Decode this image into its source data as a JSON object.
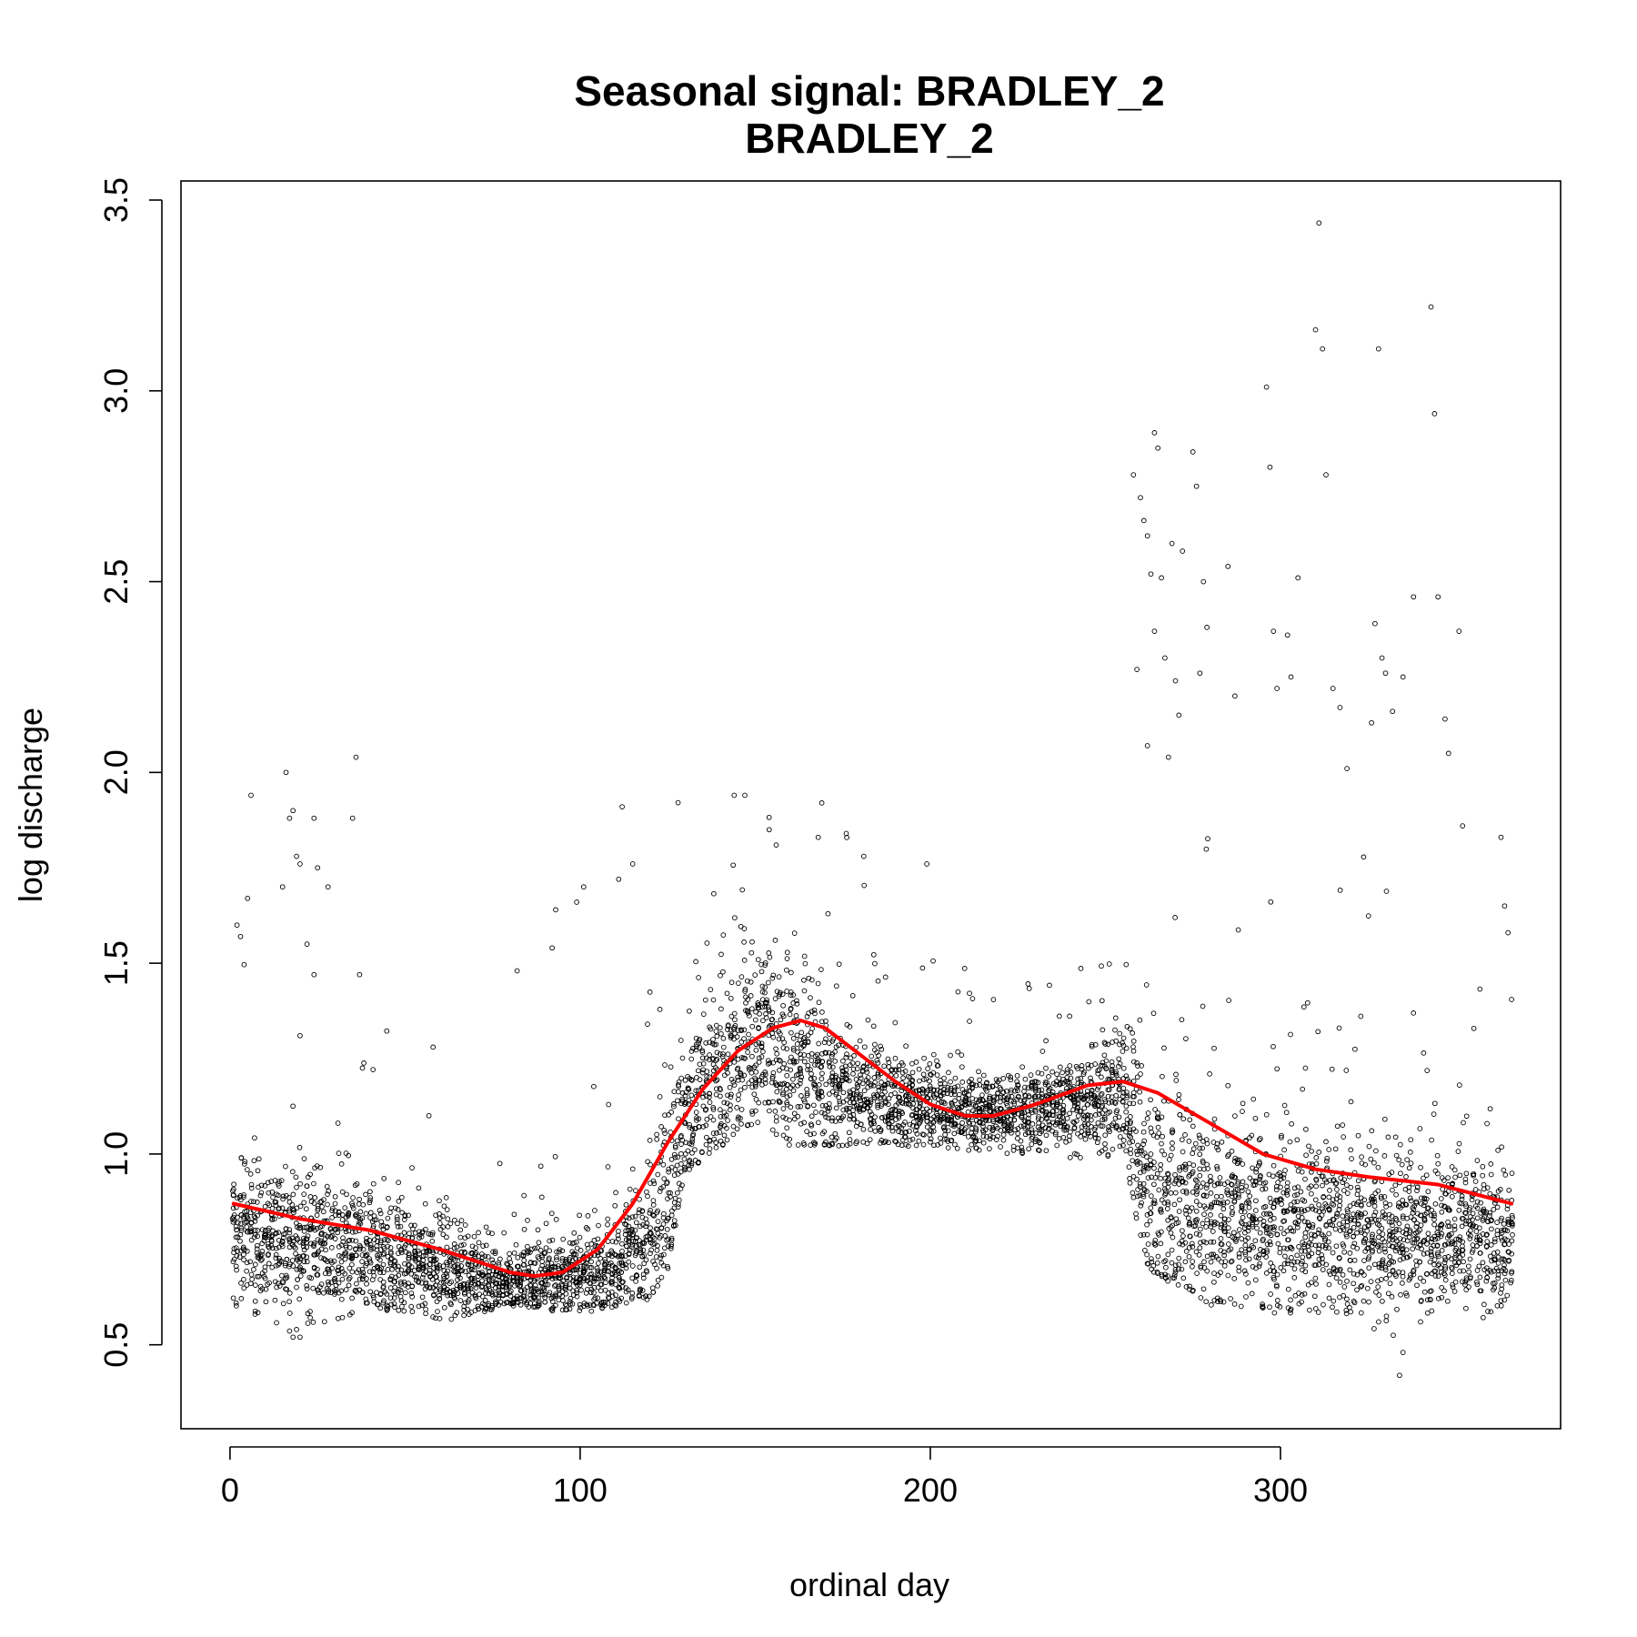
{
  "chart_data": {
    "type": "scatter",
    "title": "Seasonal signal: BRADLEY_2",
    "subtitle": "BRADLEY_2",
    "xlabel": "ordinal day",
    "ylabel": "log discharge",
    "xlim": [
      -14,
      380
    ],
    "ylim": [
      0.28,
      3.55
    ],
    "x_ticks": [
      0,
      100,
      200,
      300
    ],
    "y_ticks": [
      0.5,
      1.0,
      1.5,
      2.0,
      2.5,
      3.0,
      3.5
    ],
    "x_tick_labels": [
      "0",
      "100",
      "200",
      "300"
    ],
    "y_tick_labels": [
      "0.5",
      "1.0",
      "1.5",
      "2.0",
      "2.5",
      "3.0",
      "3.5"
    ],
    "grid": false,
    "legend": "none",
    "point_color": "#000000",
    "point_style": "open-circle",
    "n_points": 5800,
    "point_envelope": {
      "day": [
        1,
        20,
        40,
        60,
        80,
        100,
        110,
        120,
        125,
        130,
        150,
        160,
        180,
        200,
        220,
        240,
        255,
        262,
        280,
        300,
        320,
        340,
        366
      ],
      "center": [
        0.8,
        0.77,
        0.74,
        0.69,
        0.66,
        0.68,
        0.7,
        0.78,
        0.92,
        1.08,
        1.3,
        1.25,
        1.15,
        1.12,
        1.1,
        1.13,
        1.15,
        0.9,
        0.85,
        0.82,
        0.8,
        0.78,
        0.78
      ],
      "spread": [
        0.1,
        0.09,
        0.08,
        0.07,
        0.05,
        0.06,
        0.07,
        0.1,
        0.14,
        0.12,
        0.14,
        0.12,
        0.07,
        0.05,
        0.05,
        0.06,
        0.08,
        0.14,
        0.13,
        0.12,
        0.11,
        0.1,
        0.1
      ],
      "min": [
        0.6,
        0.52,
        0.6,
        0.56,
        0.6,
        0.58,
        0.6,
        0.62,
        0.7,
        0.95,
        1.08,
        1.02,
        1.02,
        1.02,
        1.0,
        0.98,
        1.0,
        0.7,
        0.6,
        0.58,
        0.58,
        0.45,
        0.62
      ]
    },
    "outliers": [
      {
        "x": 2,
        "y": 1.6
      },
      {
        "x": 3,
        "y": 1.57
      },
      {
        "x": 5,
        "y": 1.67
      },
      {
        "x": 6,
        "y": 1.94
      },
      {
        "x": 16,
        "y": 2.0
      },
      {
        "x": 17,
        "y": 1.88
      },
      {
        "x": 18,
        "y": 1.9
      },
      {
        "x": 19,
        "y": 1.78
      },
      {
        "x": 20,
        "y": 1.76
      },
      {
        "x": 15,
        "y": 1.7
      },
      {
        "x": 22,
        "y": 1.55
      },
      {
        "x": 24,
        "y": 1.47
      },
      {
        "x": 25,
        "y": 1.75
      },
      {
        "x": 28,
        "y": 1.7
      },
      {
        "x": 24,
        "y": 1.88
      },
      {
        "x": 36,
        "y": 2.04
      },
      {
        "x": 35,
        "y": 1.88
      },
      {
        "x": 37,
        "y": 1.47
      },
      {
        "x": 20,
        "y": 1.31
      },
      {
        "x": 58,
        "y": 1.28
      },
      {
        "x": 82,
        "y": 1.48
      },
      {
        "x": 92,
        "y": 1.54
      },
      {
        "x": 93,
        "y": 1.64
      },
      {
        "x": 99,
        "y": 1.66
      },
      {
        "x": 101,
        "y": 1.7
      },
      {
        "x": 112,
        "y": 1.91
      },
      {
        "x": 115,
        "y": 1.76
      },
      {
        "x": 111,
        "y": 1.72
      },
      {
        "x": 144,
        "y": 1.94
      },
      {
        "x": 154,
        "y": 1.85
      },
      {
        "x": 156,
        "y": 1.81
      },
      {
        "x": 169,
        "y": 1.92
      },
      {
        "x": 168,
        "y": 1.83
      },
      {
        "x": 176,
        "y": 1.84
      },
      {
        "x": 181,
        "y": 1.78
      },
      {
        "x": 199,
        "y": 1.76
      },
      {
        "x": 258,
        "y": 2.78
      },
      {
        "x": 260,
        "y": 2.72
      },
      {
        "x": 261,
        "y": 2.66
      },
      {
        "x": 262,
        "y": 2.62
      },
      {
        "x": 263,
        "y": 2.52
      },
      {
        "x": 264,
        "y": 2.89
      },
      {
        "x": 265,
        "y": 2.85
      },
      {
        "x": 266,
        "y": 2.51
      },
      {
        "x": 264,
        "y": 2.37
      },
      {
        "x": 267,
        "y": 2.3
      },
      {
        "x": 259,
        "y": 2.27
      },
      {
        "x": 269,
        "y": 2.6
      },
      {
        "x": 272,
        "y": 2.58
      },
      {
        "x": 275,
        "y": 2.84
      },
      {
        "x": 276,
        "y": 2.75
      },
      {
        "x": 270,
        "y": 2.24
      },
      {
        "x": 271,
        "y": 2.15
      },
      {
        "x": 278,
        "y": 2.5
      },
      {
        "x": 279,
        "y": 2.38
      },
      {
        "x": 285,
        "y": 2.54
      },
      {
        "x": 277,
        "y": 2.26
      },
      {
        "x": 287,
        "y": 2.2
      },
      {
        "x": 262,
        "y": 2.07
      },
      {
        "x": 268,
        "y": 2.04
      },
      {
        "x": 296,
        "y": 3.01
      },
      {
        "x": 297,
        "y": 2.8
      },
      {
        "x": 298,
        "y": 2.37
      },
      {
        "x": 302,
        "y": 2.36
      },
      {
        "x": 305,
        "y": 2.51
      },
      {
        "x": 299,
        "y": 2.22
      },
      {
        "x": 303,
        "y": 2.25
      },
      {
        "x": 310,
        "y": 3.16
      },
      {
        "x": 311,
        "y": 3.44
      },
      {
        "x": 312,
        "y": 3.11
      },
      {
        "x": 313,
        "y": 2.78
      },
      {
        "x": 315,
        "y": 2.22
      },
      {
        "x": 317,
        "y": 2.17
      },
      {
        "x": 319,
        "y": 2.01
      },
      {
        "x": 326,
        "y": 2.13
      },
      {
        "x": 327,
        "y": 2.39
      },
      {
        "x": 328,
        "y": 3.11
      },
      {
        "x": 329,
        "y": 2.3
      },
      {
        "x": 330,
        "y": 2.26
      },
      {
        "x": 332,
        "y": 2.16
      },
      {
        "x": 335,
        "y": 2.25
      },
      {
        "x": 338,
        "y": 2.46
      },
      {
        "x": 343,
        "y": 3.22
      },
      {
        "x": 344,
        "y": 2.94
      },
      {
        "x": 345,
        "y": 2.46
      },
      {
        "x": 347,
        "y": 2.14
      },
      {
        "x": 348,
        "y": 2.05
      },
      {
        "x": 351,
        "y": 2.37
      },
      {
        "x": 352,
        "y": 1.86
      },
      {
        "x": 363,
        "y": 1.83
      },
      {
        "x": 364,
        "y": 1.65
      },
      {
        "x": 365,
        "y": 1.58
      },
      {
        "x": 334,
        "y": 0.42
      },
      {
        "x": 335,
        "y": 0.48
      },
      {
        "x": 340,
        "y": 0.56
      },
      {
        "x": 18,
        "y": 0.52
      },
      {
        "x": 19,
        "y": 0.54
      },
      {
        "x": 20,
        "y": 0.52
      }
    ],
    "series": [
      {
        "type": "line",
        "color": "#ff0000",
        "x": [
          1,
          20,
          40,
          60,
          70,
          80,
          87,
          95,
          105,
          115,
          125,
          135,
          145,
          155,
          163,
          170,
          180,
          190,
          200,
          210,
          218,
          230,
          245,
          255,
          265,
          280,
          295,
          310,
          325,
          345,
          366
        ],
        "y": [
          0.87,
          0.83,
          0.8,
          0.75,
          0.72,
          0.69,
          0.68,
          0.69,
          0.75,
          0.87,
          1.03,
          1.17,
          1.27,
          1.33,
          1.35,
          1.33,
          1.26,
          1.19,
          1.13,
          1.1,
          1.1,
          1.13,
          1.18,
          1.19,
          1.16,
          1.08,
          1.0,
          0.96,
          0.94,
          0.92,
          0.87
        ]
      }
    ]
  }
}
